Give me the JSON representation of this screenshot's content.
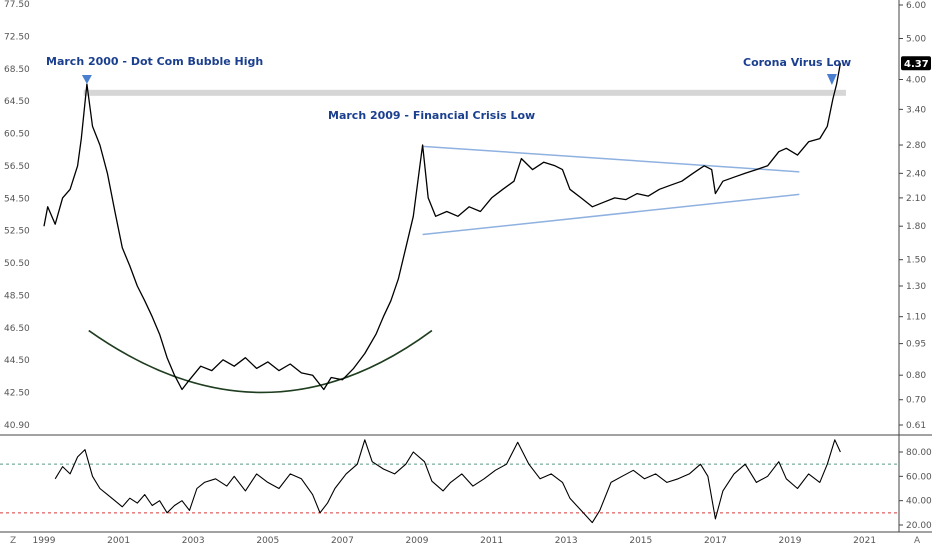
{
  "chart_data": {
    "type": "line",
    "x_tick_labels": [
      "1999",
      "2001",
      "2003",
      "2005",
      "2007",
      "2009",
      "2011",
      "2013",
      "2015",
      "2017",
      "2019",
      "2021"
    ],
    "left_axis": {
      "ticks": [
        "77.50",
        "72.50",
        "68.50",
        "64.50",
        "60.50",
        "56.50",
        "54.50",
        "52.50",
        "50.50",
        "48.50",
        "46.50",
        "44.50",
        "42.50",
        "40.90"
      ]
    },
    "right_axis": {
      "log": true,
      "ticks": [
        "6.00",
        "5.00",
        "4.00",
        "3.40",
        "2.80",
        "2.40",
        "2.10",
        "1.80",
        "1.50",
        "1.30",
        "1.10",
        "0.95",
        "0.80",
        "0.70",
        "0.61"
      ],
      "last_value": "4.37"
    },
    "series": [
      {
        "values_by_year": [
          [
            1999.0,
            1.8
          ],
          [
            1999.1,
            2.0
          ],
          [
            1999.3,
            1.82
          ],
          [
            1999.5,
            2.1
          ],
          [
            1999.7,
            2.2
          ],
          [
            1999.9,
            2.5
          ],
          [
            2000.0,
            2.9
          ],
          [
            2000.15,
            3.9
          ],
          [
            2000.3,
            3.1
          ],
          [
            2000.5,
            2.8
          ],
          [
            2000.7,
            2.4
          ],
          [
            2000.9,
            1.95
          ],
          [
            2001.1,
            1.6
          ],
          [
            2001.3,
            1.45
          ],
          [
            2001.5,
            1.3
          ],
          [
            2001.7,
            1.2
          ],
          [
            2001.9,
            1.1
          ],
          [
            2002.1,
            1.0
          ],
          [
            2002.3,
            0.88
          ],
          [
            2002.5,
            0.8
          ],
          [
            2002.7,
            0.74
          ],
          [
            2002.9,
            0.78
          ],
          [
            2003.2,
            0.84
          ],
          [
            2003.5,
            0.82
          ],
          [
            2003.8,
            0.87
          ],
          [
            2004.1,
            0.84
          ],
          [
            2004.4,
            0.88
          ],
          [
            2004.7,
            0.83
          ],
          [
            2005.0,
            0.86
          ],
          [
            2005.3,
            0.82
          ],
          [
            2005.6,
            0.85
          ],
          [
            2005.9,
            0.81
          ],
          [
            2006.2,
            0.8
          ],
          [
            2006.4,
            0.76
          ],
          [
            2006.5,
            0.74
          ],
          [
            2006.7,
            0.79
          ],
          [
            2007.0,
            0.78
          ],
          [
            2007.3,
            0.83
          ],
          [
            2007.6,
            0.9
          ],
          [
            2007.9,
            1.0
          ],
          [
            2008.1,
            1.1
          ],
          [
            2008.3,
            1.2
          ],
          [
            2008.5,
            1.35
          ],
          [
            2008.7,
            1.6
          ],
          [
            2008.9,
            1.9
          ],
          [
            2009.05,
            2.4
          ],
          [
            2009.15,
            2.8
          ],
          [
            2009.3,
            2.1
          ],
          [
            2009.5,
            1.9
          ],
          [
            2009.8,
            1.95
          ],
          [
            2010.1,
            1.9
          ],
          [
            2010.4,
            2.0
          ],
          [
            2010.7,
            1.95
          ],
          [
            2011.0,
            2.1
          ],
          [
            2011.3,
            2.2
          ],
          [
            2011.6,
            2.3
          ],
          [
            2011.8,
            2.6
          ],
          [
            2012.1,
            2.45
          ],
          [
            2012.4,
            2.55
          ],
          [
            2012.7,
            2.5
          ],
          [
            2012.9,
            2.45
          ],
          [
            2013.1,
            2.2
          ],
          [
            2013.4,
            2.1
          ],
          [
            2013.7,
            2.0
          ],
          [
            2014.0,
            2.05
          ],
          [
            2014.3,
            2.1
          ],
          [
            2014.6,
            2.08
          ],
          [
            2014.9,
            2.15
          ],
          [
            2015.2,
            2.12
          ],
          [
            2015.5,
            2.2
          ],
          [
            2015.8,
            2.25
          ],
          [
            2016.1,
            2.3
          ],
          [
            2016.4,
            2.4
          ],
          [
            2016.7,
            2.5
          ],
          [
            2016.9,
            2.45
          ],
          [
            2017.0,
            2.15
          ],
          [
            2017.2,
            2.3
          ],
          [
            2017.5,
            2.35
          ],
          [
            2017.8,
            2.4
          ],
          [
            2018.1,
            2.45
          ],
          [
            2018.4,
            2.5
          ],
          [
            2018.7,
            2.7
          ],
          [
            2018.9,
            2.75
          ],
          [
            2019.2,
            2.65
          ],
          [
            2019.5,
            2.85
          ],
          [
            2019.8,
            2.9
          ],
          [
            2020.0,
            3.1
          ],
          [
            2020.15,
            3.6
          ],
          [
            2020.25,
            3.9
          ],
          [
            2020.35,
            4.37
          ]
        ]
      },
      {
        "axis": "oscillator",
        "values_by_year": [
          [
            1999.3,
            58
          ],
          [
            1999.5,
            68
          ],
          [
            1999.7,
            62
          ],
          [
            1999.9,
            76
          ],
          [
            2000.1,
            82
          ],
          [
            2000.3,
            60
          ],
          [
            2000.5,
            50
          ],
          [
            2000.7,
            45
          ],
          [
            2000.9,
            40
          ],
          [
            2001.1,
            35
          ],
          [
            2001.3,
            42
          ],
          [
            2001.5,
            38
          ],
          [
            2001.7,
            45
          ],
          [
            2001.9,
            36
          ],
          [
            2002.1,
            40
          ],
          [
            2002.3,
            30
          ],
          [
            2002.5,
            36
          ],
          [
            2002.7,
            40
          ],
          [
            2002.9,
            32
          ],
          [
            2003.1,
            50
          ],
          [
            2003.3,
            55
          ],
          [
            2003.6,
            58
          ],
          [
            2003.9,
            52
          ],
          [
            2004.1,
            60
          ],
          [
            2004.4,
            48
          ],
          [
            2004.7,
            62
          ],
          [
            2005.0,
            55
          ],
          [
            2005.3,
            50
          ],
          [
            2005.6,
            62
          ],
          [
            2005.9,
            58
          ],
          [
            2006.2,
            45
          ],
          [
            2006.4,
            30
          ],
          [
            2006.6,
            38
          ],
          [
            2006.8,
            50
          ],
          [
            2007.1,
            62
          ],
          [
            2007.4,
            70
          ],
          [
            2007.6,
            90
          ],
          [
            2007.8,
            72
          ],
          [
            2008.1,
            66
          ],
          [
            2008.4,
            62
          ],
          [
            2008.7,
            70
          ],
          [
            2008.9,
            80
          ],
          [
            2009.2,
            72
          ],
          [
            2009.4,
            56
          ],
          [
            2009.7,
            48
          ],
          [
            2009.9,
            55
          ],
          [
            2010.2,
            62
          ],
          [
            2010.5,
            52
          ],
          [
            2010.8,
            58
          ],
          [
            2011.1,
            65
          ],
          [
            2011.4,
            70
          ],
          [
            2011.7,
            88
          ],
          [
            2012.0,
            70
          ],
          [
            2012.3,
            58
          ],
          [
            2012.6,
            62
          ],
          [
            2012.9,
            55
          ],
          [
            2013.1,
            42
          ],
          [
            2013.4,
            32
          ],
          [
            2013.7,
            22
          ],
          [
            2013.9,
            32
          ],
          [
            2014.2,
            55
          ],
          [
            2014.5,
            60
          ],
          [
            2014.8,
            65
          ],
          [
            2015.1,
            58
          ],
          [
            2015.4,
            62
          ],
          [
            2015.7,
            55
          ],
          [
            2016.0,
            58
          ],
          [
            2016.3,
            62
          ],
          [
            2016.6,
            70
          ],
          [
            2016.8,
            60
          ],
          [
            2017.0,
            25
          ],
          [
            2017.2,
            48
          ],
          [
            2017.5,
            62
          ],
          [
            2017.8,
            70
          ],
          [
            2018.1,
            55
          ],
          [
            2018.4,
            60
          ],
          [
            2018.7,
            72
          ],
          [
            2018.9,
            58
          ],
          [
            2019.2,
            50
          ],
          [
            2019.5,
            62
          ],
          [
            2019.8,
            55
          ],
          [
            2020.0,
            70
          ],
          [
            2020.2,
            90
          ],
          [
            2020.35,
            80
          ]
        ]
      }
    ],
    "oscillator": {
      "ticks": [
        "80.00",
        "60.00",
        "40.00",
        "20.00"
      ],
      "upper_level": 70,
      "lower_level": 30
    },
    "annotations": {
      "dotcom": "March 2000 - Dot Com Bubble High",
      "crisis": "March 2009 - Financial Crisis Low",
      "corona": "Corona Virus Low"
    },
    "colors": {
      "price_line": "#000000",
      "oscillator_line": "#000000",
      "trendline": "#8fb1e0",
      "resistance_band": "#d6d6d6",
      "arc": "#1f3d1f",
      "upper_level": "#5b9a82",
      "lower_level": "#d83a3a",
      "annotation": "#1b3f8f",
      "badge": "#000000"
    }
  },
  "corners": {
    "left": "Z",
    "right": "A"
  }
}
